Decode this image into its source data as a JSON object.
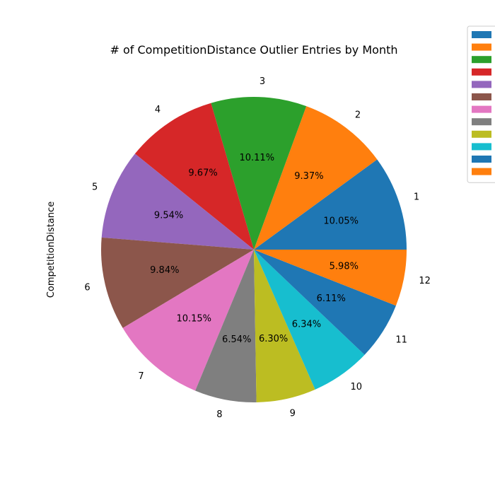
{
  "chart_data": {
    "type": "pie",
    "title": "# of CompetitionDistance Outlier Entries by Month",
    "ylabel": "CompetitionDistance",
    "xlabel": "",
    "categories": [
      "1",
      "2",
      "3",
      "4",
      "5",
      "6",
      "7",
      "8",
      "9",
      "10",
      "11",
      "12"
    ],
    "values": [
      10.05,
      9.37,
      10.11,
      9.67,
      9.54,
      9.84,
      10.15,
      6.54,
      6.3,
      6.34,
      6.11,
      5.98
    ],
    "percent_labels": [
      "10.05%",
      "9.37%",
      "10.11%",
      "9.67%",
      "9.54%",
      "9.84%",
      "10.15%",
      "6.54%",
      "6.30%",
      "6.34%",
      "6.11%",
      "5.98%"
    ],
    "colors": [
      "#1f77b4",
      "#ff7f0e",
      "#2ca02c",
      "#d62728",
      "#9467bd",
      "#8c564b",
      "#e377c2",
      "#7f7f7f",
      "#bcbd22",
      "#17becf",
      "#1f77b4",
      "#ff7f0e"
    ],
    "start_angle_deg": 0,
    "direction": "counterclockwise",
    "legend": {
      "placement": "top-right",
      "labels": [
        "",
        "",
        "",
        "",
        "",
        "",
        "",
        "",
        "",
        "",
        "",
        ""
      ]
    }
  }
}
